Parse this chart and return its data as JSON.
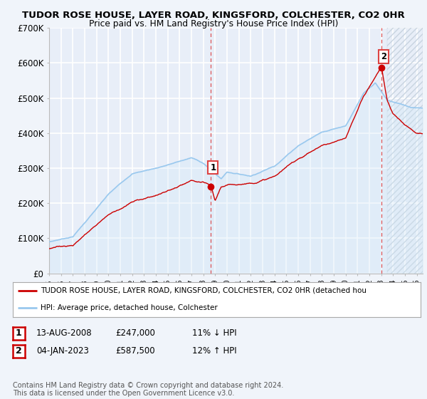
{
  "title": "TUDOR ROSE HOUSE, LAYER ROAD, KINGSFORD, COLCHESTER, CO2 0HR",
  "subtitle": "Price paid vs. HM Land Registry's House Price Index (HPI)",
  "ylabel_ticks": [
    "£0",
    "£100K",
    "£200K",
    "£300K",
    "£400K",
    "£500K",
    "£600K",
    "£700K"
  ],
  "ylim": [
    0,
    700000
  ],
  "xlim_start": 1995.0,
  "xlim_end": 2026.5,
  "hpi_color": "#99c8ee",
  "hpi_fill_color": "#d0e8f8",
  "price_color": "#cc0000",
  "dashed_color": "#dd4444",
  "background_color": "#f0f4fa",
  "plot_bg_color": "#e8eef8",
  "grid_color": "#ffffff",
  "hatch_color": "#c8d4e0",
  "transaction1": {
    "date_num": 2008.62,
    "price": 247000,
    "label": "1"
  },
  "transaction2": {
    "date_num": 2023.02,
    "price": 587500,
    "label": "2"
  },
  "legend_line1": "TUDOR ROSE HOUSE, LAYER ROAD, KINGSFORD, COLCHESTER, CO2 0HR (detached hou",
  "legend_line2": "HPI: Average price, detached house, Colchester",
  "table_rows": [
    [
      "1",
      "13-AUG-2008",
      "£247,000",
      "11% ↓ HPI"
    ],
    [
      "2",
      "04-JAN-2023",
      "£587,500",
      "12% ↑ HPI"
    ]
  ],
  "footer": "Contains HM Land Registry data © Crown copyright and database right 2024.\nThis data is licensed under the Open Government Licence v3.0."
}
